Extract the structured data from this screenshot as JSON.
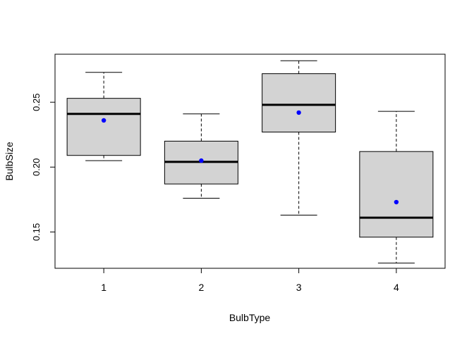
{
  "chart_data": {
    "type": "boxplot",
    "title": "",
    "xlabel": "BulbType",
    "ylabel": "BulbSize",
    "categories": [
      "1",
      "2",
      "3",
      "4"
    ],
    "ylim": [
      0.122,
      0.287
    ],
    "yticks": [
      0.15,
      0.2,
      0.25
    ],
    "ytick_labels": [
      "0.15",
      "0.20",
      "0.25"
    ],
    "grid": false,
    "box_fill": "#d3d3d3",
    "mean_color": "#0000ff",
    "boxes": [
      {
        "category": "1",
        "whisker_low": 0.205,
        "q1": 0.209,
        "median": 0.241,
        "q3": 0.253,
        "whisker_high": 0.273,
        "mean": 0.236
      },
      {
        "category": "2",
        "whisker_low": 0.176,
        "q1": 0.187,
        "median": 0.204,
        "q3": 0.22,
        "whisker_high": 0.241,
        "mean": 0.205
      },
      {
        "category": "3",
        "whisker_low": 0.163,
        "q1": 0.227,
        "median": 0.248,
        "q3": 0.272,
        "whisker_high": 0.282,
        "mean": 0.242
      },
      {
        "category": "4",
        "whisker_low": 0.126,
        "q1": 0.146,
        "median": 0.161,
        "q3": 0.212,
        "whisker_high": 0.243,
        "mean": 0.173
      }
    ]
  }
}
